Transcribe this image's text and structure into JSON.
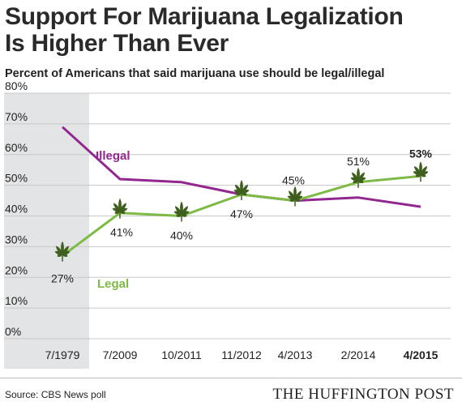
{
  "title_line1": "Support For Marijuana Legalization",
  "title_line2": "Is Higher Than Ever",
  "subtitle": "Percent of Americans that said marijuana use should be legal/illegal",
  "source": "Source: CBS News poll",
  "brand": "THE HUFFINGTON POST",
  "colors": {
    "legal": "#7dbb45",
    "illegal": "#92278f",
    "highlight_band": "#e3e4e6",
    "grid": "#c8c8c8",
    "leaf": "#3f5f1f"
  },
  "chart_data": {
    "type": "line",
    "categories": [
      "7/1979",
      "7/2009",
      "10/2011",
      "11/2012",
      "4/2013",
      "2/2014",
      "4/2015"
    ],
    "bold_category": "4/2015",
    "highlighted_category": "7/1979",
    "ylim": [
      0,
      80
    ],
    "yticks": [
      0,
      10,
      20,
      30,
      40,
      50,
      60,
      70,
      80
    ],
    "ytick_labels": [
      "0%",
      "10%",
      "20%",
      "30%",
      "40%",
      "50%",
      "60%",
      "70%",
      "80%"
    ],
    "grid": true,
    "series": [
      {
        "name": "Legal",
        "values": [
          27,
          41,
          40,
          47,
          45,
          51,
          53
        ],
        "point_labels": [
          "27%",
          "41%",
          "40%",
          "47%",
          "45%",
          "51%",
          "53%"
        ],
        "marker": "leaf-icon"
      },
      {
        "name": "Illegal",
        "values": [
          69,
          52,
          51,
          47,
          45,
          46,
          43
        ]
      }
    ]
  }
}
